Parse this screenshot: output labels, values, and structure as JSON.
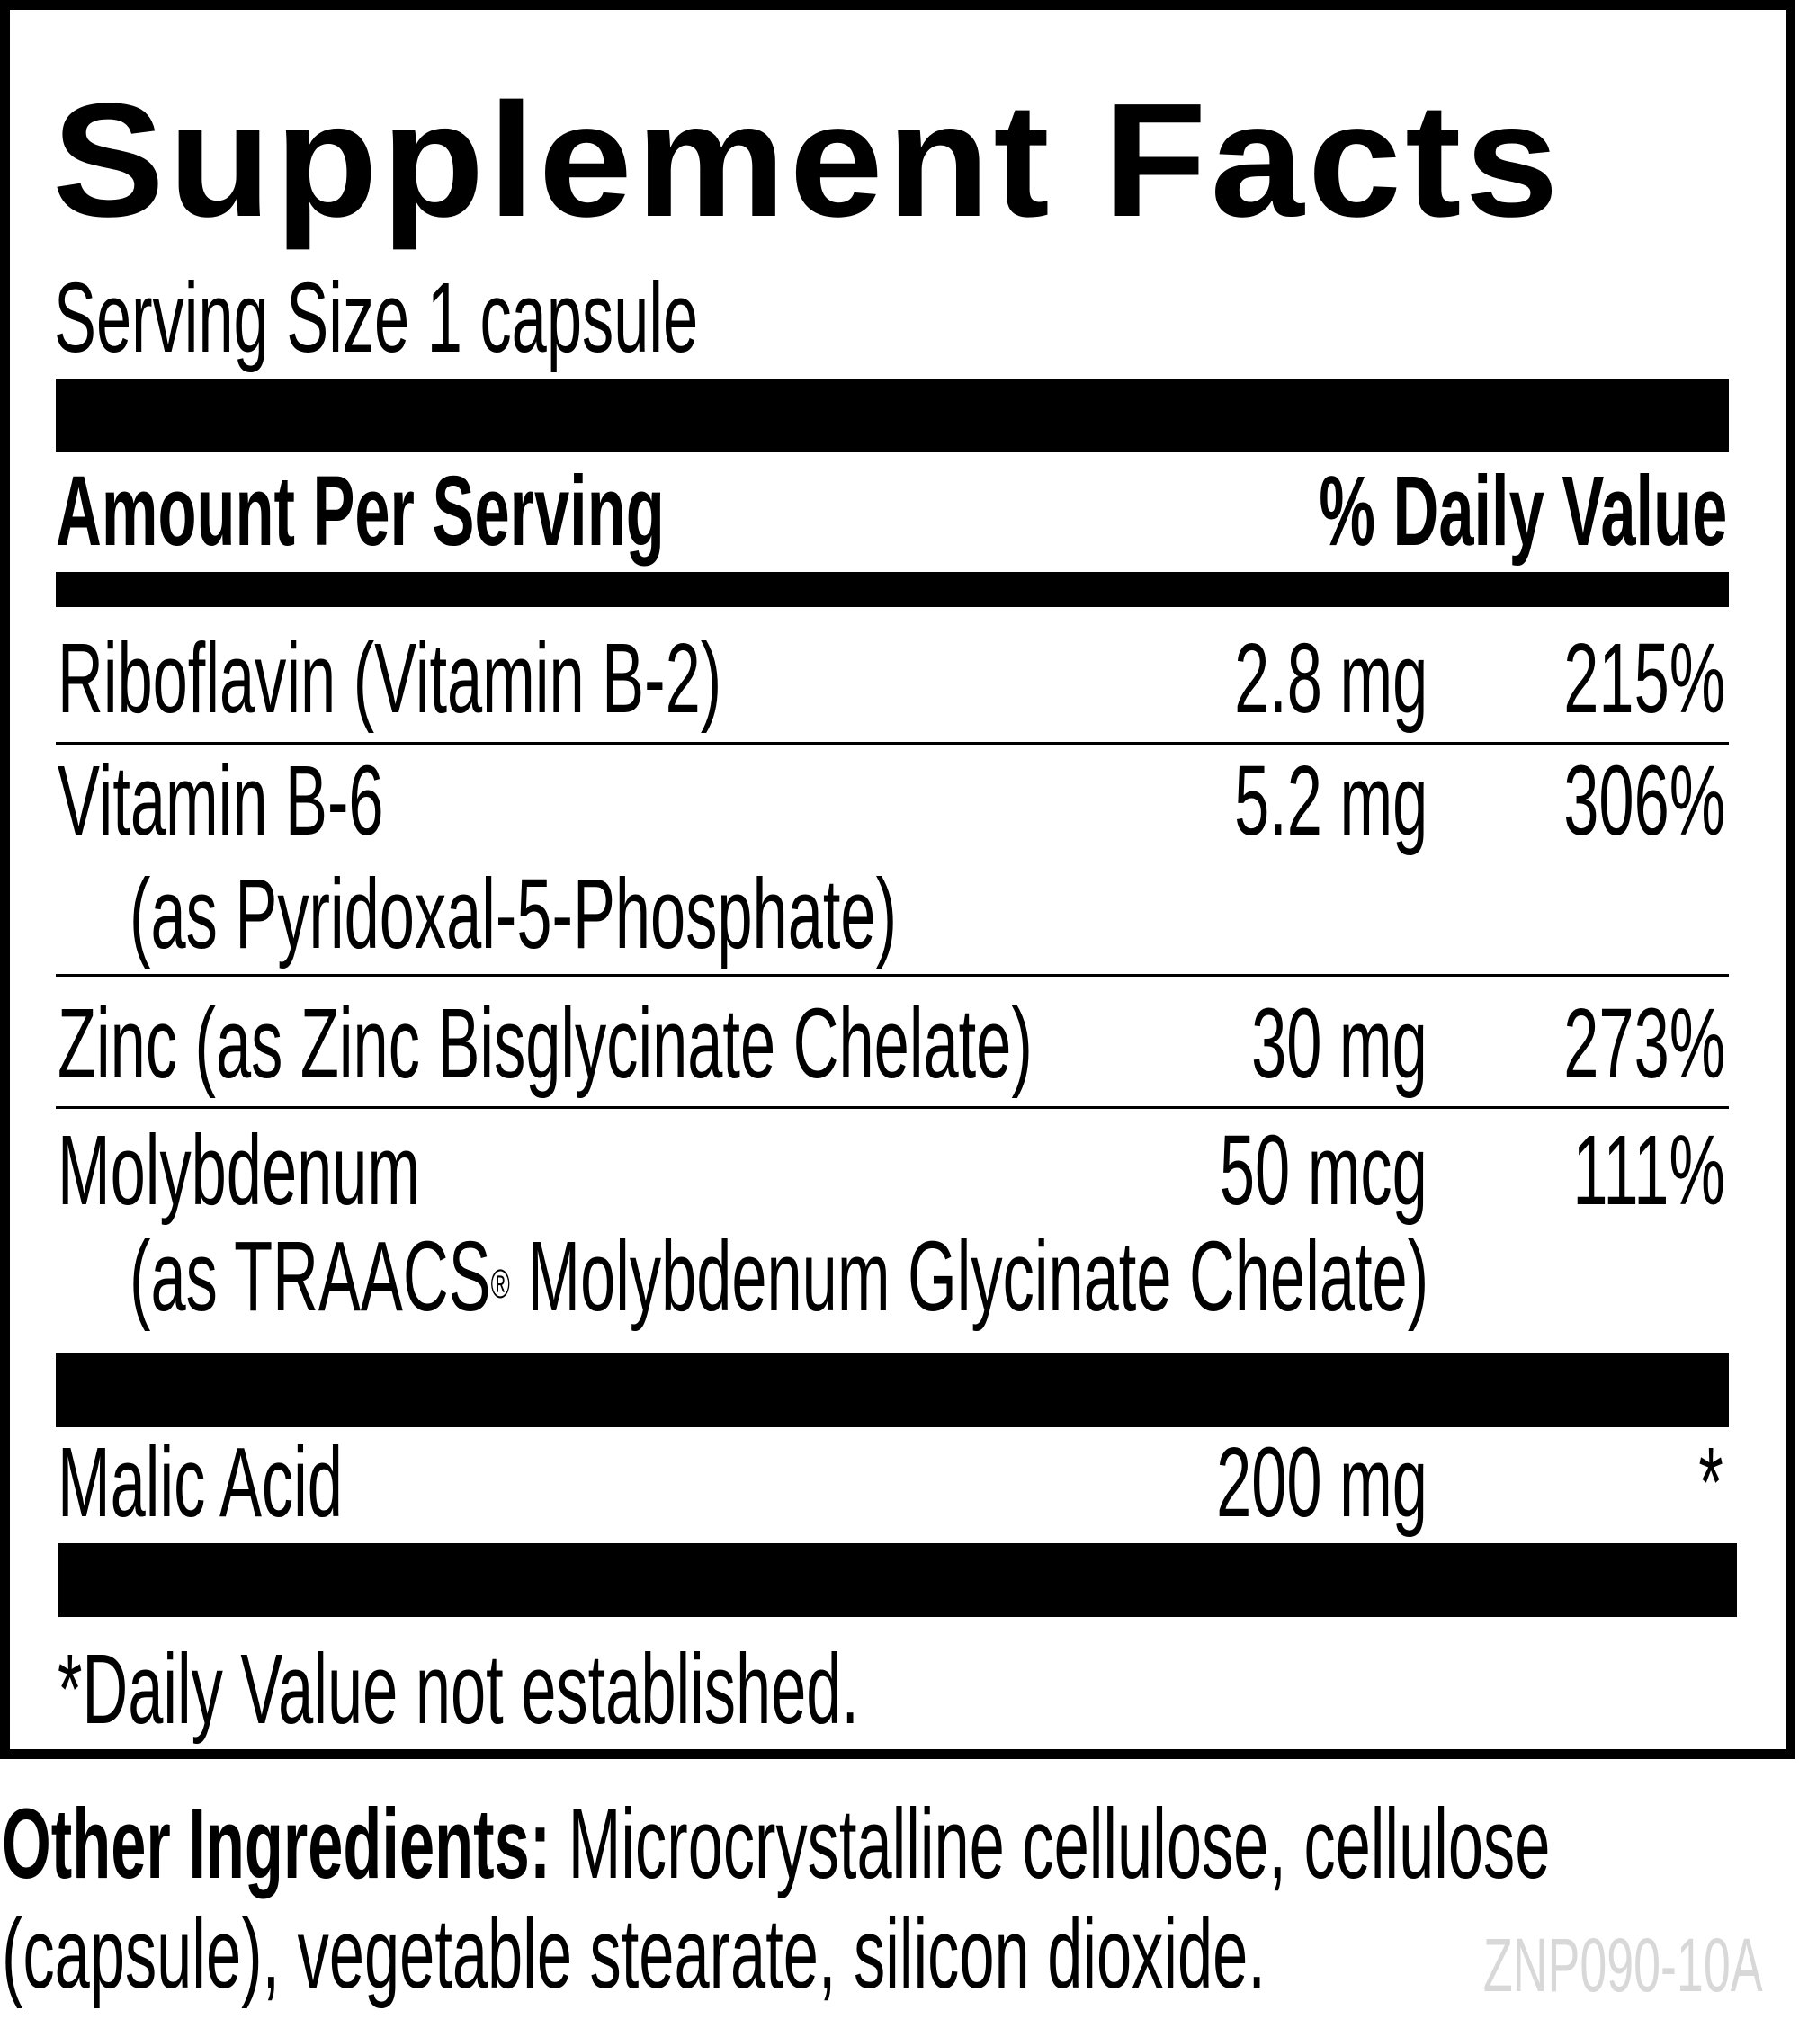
{
  "title": "Supplement Facts",
  "serving_size": "Serving Size 1 capsule",
  "header": {
    "amount": "Amount Per Serving",
    "dv": "% Daily Value"
  },
  "rows": [
    {
      "name": "Riboflavin (Vitamin B-2)",
      "amount": "2.8 mg",
      "dv": "215%"
    },
    {
      "name": "Vitamin B-6",
      "sub": "(as Pyridoxal-5-Phosphate)",
      "amount": "5.2 mg",
      "dv": "306%"
    },
    {
      "name": "Zinc (as Zinc Bisglycinate Chelate)",
      "amount": "30 mg",
      "dv": "273%"
    },
    {
      "name": "Molybdenum",
      "sub_pre": "(as TRAACS",
      "sub_mark": "®",
      "sub_post": " Molybdenum Glycinate Chelate)",
      "amount": "50 mcg",
      "dv": "111%"
    }
  ],
  "other_rows": [
    {
      "name": "Malic Acid",
      "amount": "200 mg",
      "dv": "*"
    }
  ],
  "footnote": "*Daily Value not established.",
  "other_ingredients": {
    "label": "Other Ingredients:",
    "line1": " Microcrystalline cellulose, cellulose",
    "line2": "(capsule), vegetable stearate, silicon dioxide."
  },
  "code": "ZNP090-10A"
}
